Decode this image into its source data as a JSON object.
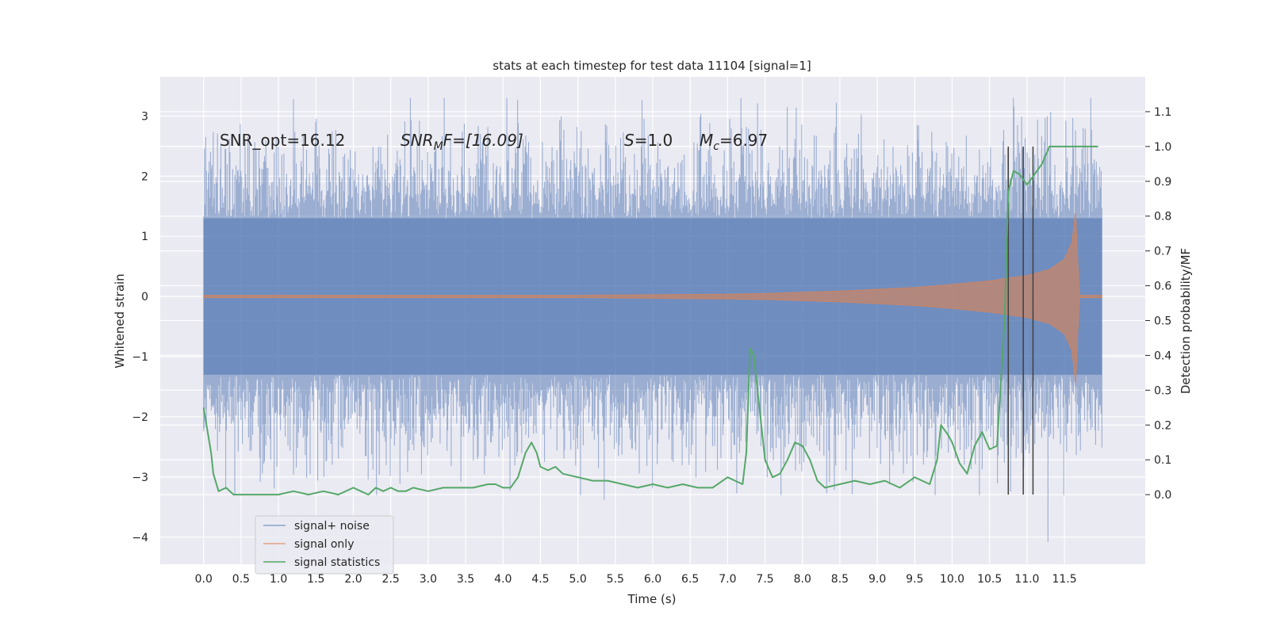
{
  "chart_data": {
    "type": "line",
    "title": "stats at each timestep for test data 11104 [signal=1]",
    "xlabel": "Time (s)",
    "ylabel": "Whitened strain",
    "y2label": "Detection probability/MF",
    "xlim": [
      -0.58,
      12.58
    ],
    "ylim": [
      -4.45,
      3.65
    ],
    "y2lim": [
      -0.2,
      1.2
    ],
    "x_ticks": [
      0.0,
      0.5,
      1.0,
      1.5,
      2.0,
      2.5,
      3.0,
      3.5,
      4.0,
      4.5,
      5.0,
      5.5,
      6.0,
      6.5,
      7.0,
      7.5,
      8.0,
      8.5,
      9.0,
      9.5,
      10.0,
      10.5,
      11.0,
      11.5
    ],
    "x_tick_labels": [
      "0.0",
      "0.5",
      "1.0",
      "1.5",
      "2.0",
      "2.5",
      "3.0",
      "3.5",
      "4.0",
      "4.5",
      "5.0",
      "5.5",
      "6.0",
      "6.5",
      "7.0",
      "7.5",
      "8.0",
      "8.5",
      "9.0",
      "9.5",
      "10.0",
      "10.5",
      "11.0",
      "11.5"
    ],
    "y_ticks": [
      -4,
      -3,
      -2,
      -1,
      0,
      1,
      2,
      3
    ],
    "y_tick_labels": [
      "−4",
      "−3",
      "−2",
      "−1",
      "0",
      "1",
      "2",
      "3"
    ],
    "y2_ticks": [
      0.0,
      0.1,
      0.2,
      0.3,
      0.4,
      0.5,
      0.6,
      0.7,
      0.8,
      0.9,
      1.0,
      1.1
    ],
    "y2_tick_labels": [
      "0.0",
      "0.1",
      "0.2",
      "0.3",
      "0.4",
      "0.5",
      "0.6",
      "0.7",
      "0.8",
      "0.9",
      "1.0",
      "1.1"
    ],
    "grid": true,
    "legend_position": "lower-left",
    "annotations": {
      "snr_opt": "SNR_opt=16.12",
      "snr_mf_main": "SNR",
      "snr_mf_sub": "M",
      "snr_mf_rest": "F=[16.09]",
      "s_main": "S",
      "s_rest": "=1.0",
      "mc_main": "M",
      "mc_sub": "c",
      "mc_rest": "=6.97"
    },
    "series": [
      {
        "name": "signal+ noise",
        "color": "#4c72b0",
        "alpha": 0.5,
        "kind": "noise-band",
        "x_range": [
          0.0,
          12.0
        ],
        "dense_band": [
          -1.3,
          1.3
        ],
        "peak_range": [
          -3.3,
          3.3
        ],
        "notable_extremes": [
          {
            "x": 1.2,
            "y": 3.28
          },
          {
            "x": 4.05,
            "y": 3.3
          },
          {
            "x": 5.35,
            "y": -3.38
          },
          {
            "x": 11.28,
            "y": -4.08
          }
        ]
      },
      {
        "name": "signal only",
        "color": "#dd8452",
        "kind": "chirp-envelope",
        "x": [
          0.0,
          1.0,
          2.0,
          3.0,
          4.0,
          5.0,
          6.0,
          7.0,
          7.5,
          8.0,
          8.5,
          9.0,
          9.5,
          10.0,
          10.5,
          11.0,
          11.3,
          11.5,
          11.6,
          11.65,
          11.7,
          12.0
        ],
        "upper": [
          0.02,
          0.02,
          0.02,
          0.02,
          0.02,
          0.02,
          0.03,
          0.04,
          0.05,
          0.07,
          0.09,
          0.12,
          0.15,
          0.2,
          0.26,
          0.35,
          0.45,
          0.62,
          0.9,
          1.4,
          0.02,
          0.02
        ],
        "lower": [
          -0.02,
          -0.02,
          -0.02,
          -0.02,
          -0.02,
          -0.02,
          -0.03,
          -0.04,
          -0.05,
          -0.07,
          -0.09,
          -0.12,
          -0.15,
          -0.2,
          -0.26,
          -0.35,
          -0.45,
          -0.62,
          -0.9,
          -1.45,
          -0.02,
          -0.02
        ]
      },
      {
        "name": "signal statistics",
        "color": "#55a868",
        "axis": "right",
        "x": [
          0.0,
          0.1,
          0.13,
          0.2,
          0.3,
          0.4,
          0.5,
          0.6,
          0.8,
          1.0,
          1.2,
          1.4,
          1.6,
          1.8,
          2.0,
          2.1,
          2.2,
          2.3,
          2.4,
          2.5,
          2.6,
          2.7,
          2.8,
          3.0,
          3.2,
          3.4,
          3.6,
          3.8,
          3.9,
          4.0,
          4.1,
          4.2,
          4.3,
          4.38,
          4.45,
          4.5,
          4.6,
          4.7,
          4.8,
          5.0,
          5.2,
          5.4,
          5.6,
          5.8,
          6.0,
          6.2,
          6.4,
          6.6,
          6.8,
          7.0,
          7.1,
          7.2,
          7.25,
          7.3,
          7.35,
          7.4,
          7.5,
          7.6,
          7.7,
          7.8,
          7.9,
          8.0,
          8.1,
          8.2,
          8.3,
          8.5,
          8.7,
          8.9,
          9.1,
          9.3,
          9.5,
          9.6,
          9.7,
          9.8,
          9.85,
          9.95,
          10.0,
          10.1,
          10.2,
          10.3,
          10.4,
          10.5,
          10.6,
          10.7,
          10.75,
          10.82,
          10.9,
          11.0,
          11.1,
          11.2,
          11.3,
          11.4,
          11.6,
          11.8,
          11.95
        ],
        "y": [
          0.25,
          0.12,
          0.06,
          0.01,
          0.02,
          0.0,
          0.0,
          0.0,
          0.0,
          0.0,
          0.01,
          0.0,
          0.01,
          0.0,
          0.02,
          0.01,
          0.0,
          0.02,
          0.01,
          0.02,
          0.01,
          0.01,
          0.02,
          0.01,
          0.02,
          0.02,
          0.02,
          0.03,
          0.03,
          0.02,
          0.02,
          0.05,
          0.12,
          0.15,
          0.12,
          0.08,
          0.07,
          0.08,
          0.06,
          0.05,
          0.04,
          0.04,
          0.03,
          0.02,
          0.03,
          0.02,
          0.03,
          0.02,
          0.02,
          0.05,
          0.04,
          0.03,
          0.12,
          0.42,
          0.4,
          0.3,
          0.1,
          0.05,
          0.06,
          0.1,
          0.15,
          0.14,
          0.1,
          0.04,
          0.02,
          0.03,
          0.04,
          0.03,
          0.04,
          0.02,
          0.05,
          0.04,
          0.03,
          0.1,
          0.2,
          0.17,
          0.15,
          0.09,
          0.06,
          0.14,
          0.18,
          0.13,
          0.14,
          0.5,
          0.87,
          0.93,
          0.92,
          0.89,
          0.92,
          0.95,
          1.0,
          1.0,
          1.0,
          1.0,
          1.0
        ]
      }
    ],
    "vertical_lines": {
      "color": "#404040",
      "x": [
        10.75,
        10.95,
        11.08
      ],
      "y2_range": [
        0.0,
        1.0
      ]
    }
  }
}
